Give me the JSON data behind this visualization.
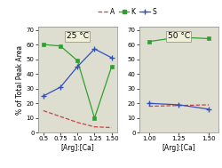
{
  "left": {
    "title": "25 °C",
    "x": [
      0.5,
      0.75,
      1.0,
      1.25,
      1.5
    ],
    "A": [
      15,
      11,
      7,
      4,
      3.5
    ],
    "K": [
      60,
      59,
      49,
      10,
      45
    ],
    "S": [
      25,
      31,
      45,
      57,
      51
    ],
    "xlim": [
      0.42,
      1.58
    ],
    "xticks": [
      0.5,
      0.75,
      1.0,
      1.25,
      1.5
    ],
    "xticklabels": [
      "0.5",
      "0.75",
      "1.0",
      "1.25",
      "1.50"
    ],
    "ylim": [
      0,
      72
    ],
    "yticks": [
      0,
      10,
      20,
      30,
      40,
      50,
      60,
      70
    ]
  },
  "right": {
    "title": "50 °C",
    "x": [
      1.0,
      1.25,
      1.5
    ],
    "A": [
      18,
      18.5,
      19
    ],
    "K": [
      62,
      65,
      64
    ],
    "S": [
      20,
      19,
      16
    ],
    "xlim": [
      0.92,
      1.58
    ],
    "xticks": [
      1.0,
      1.25,
      1.5
    ],
    "xticklabels": [
      "1.00",
      "1.25",
      "1.50"
    ],
    "ylim": [
      0,
      72
    ],
    "yticks": [
      0,
      10,
      20,
      30,
      40,
      50,
      60,
      70
    ]
  },
  "ylabel": "% of Total Peak Area",
  "xlabel": "[Arg]:[Ca]",
  "A_color": "#d04040",
  "K_color": "#30a030",
  "S_color": "#3050c0",
  "bg_color": "#deded0",
  "title_box_color": "#f0f0d8"
}
